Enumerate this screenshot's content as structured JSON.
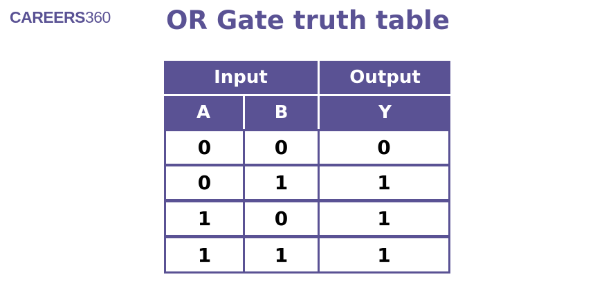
{
  "logo": {
    "bold": "CAREERS",
    "light": "360"
  },
  "title": "OR Gate truth table",
  "table": {
    "group_headers": [
      "Input",
      "Output"
    ],
    "columns": [
      "A",
      "B",
      "Y"
    ],
    "rows": [
      [
        "0",
        "0",
        "0"
      ],
      [
        "0",
        "1",
        "1"
      ],
      [
        "1",
        "0",
        "1"
      ],
      [
        "1",
        "1",
        "1"
      ]
    ]
  },
  "colors": {
    "accent": "#5a5294"
  }
}
